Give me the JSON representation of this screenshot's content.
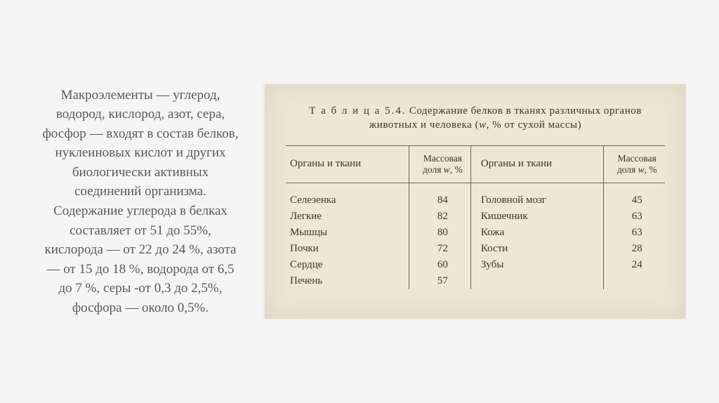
{
  "paragraph": "Макроэлементы — углерод, водород, кислород, азот, сера, фосфор — входят в состав белков, нуклеиновых кислот и других биологически активных соединений организма. Содержание углерода в белках составляет от 51 до 55%, кислорода — от 22 до 24 %, азота — от 15 до 18 %, водорода от 6,5 до 7 %, серы -от 0,3 до 2,5%, фосфора — около 0,5%.",
  "table": {
    "caption_prefix": "Т а б л и ц а  5.4.",
    "caption_rest": " Содержание белков в тканях различных органов животных и человека (",
    "caption_w": "w",
    "caption_tail": ", % от сухой массы)",
    "header_organ": "Органы и ткани",
    "header_value_l1": "Массовая",
    "header_value_l2": "доля w, %",
    "rows_left": [
      {
        "name": "Селезенка",
        "val": "84"
      },
      {
        "name": "Легкие",
        "val": "82"
      },
      {
        "name": "Мышцы",
        "val": "80"
      },
      {
        "name": "Почки",
        "val": "72"
      },
      {
        "name": "Сердце",
        "val": "60"
      },
      {
        "name": "Печень",
        "val": "57"
      }
    ],
    "rows_right": [
      {
        "name": "Головной мозг",
        "val": "45"
      },
      {
        "name": "Кишечник",
        "val": "63"
      },
      {
        "name": "Кожа",
        "val": "63"
      },
      {
        "name": "Кости",
        "val": "28"
      },
      {
        "name": "Зубы",
        "val": "24"
      },
      {
        "name": "",
        "val": ""
      }
    ]
  },
  "colors": {
    "page_bg": "#f5f5f5",
    "scan_bg": "#ede7d8",
    "text": "#595959",
    "scan_text": "#3a362e",
    "rule": "#6a6456"
  }
}
